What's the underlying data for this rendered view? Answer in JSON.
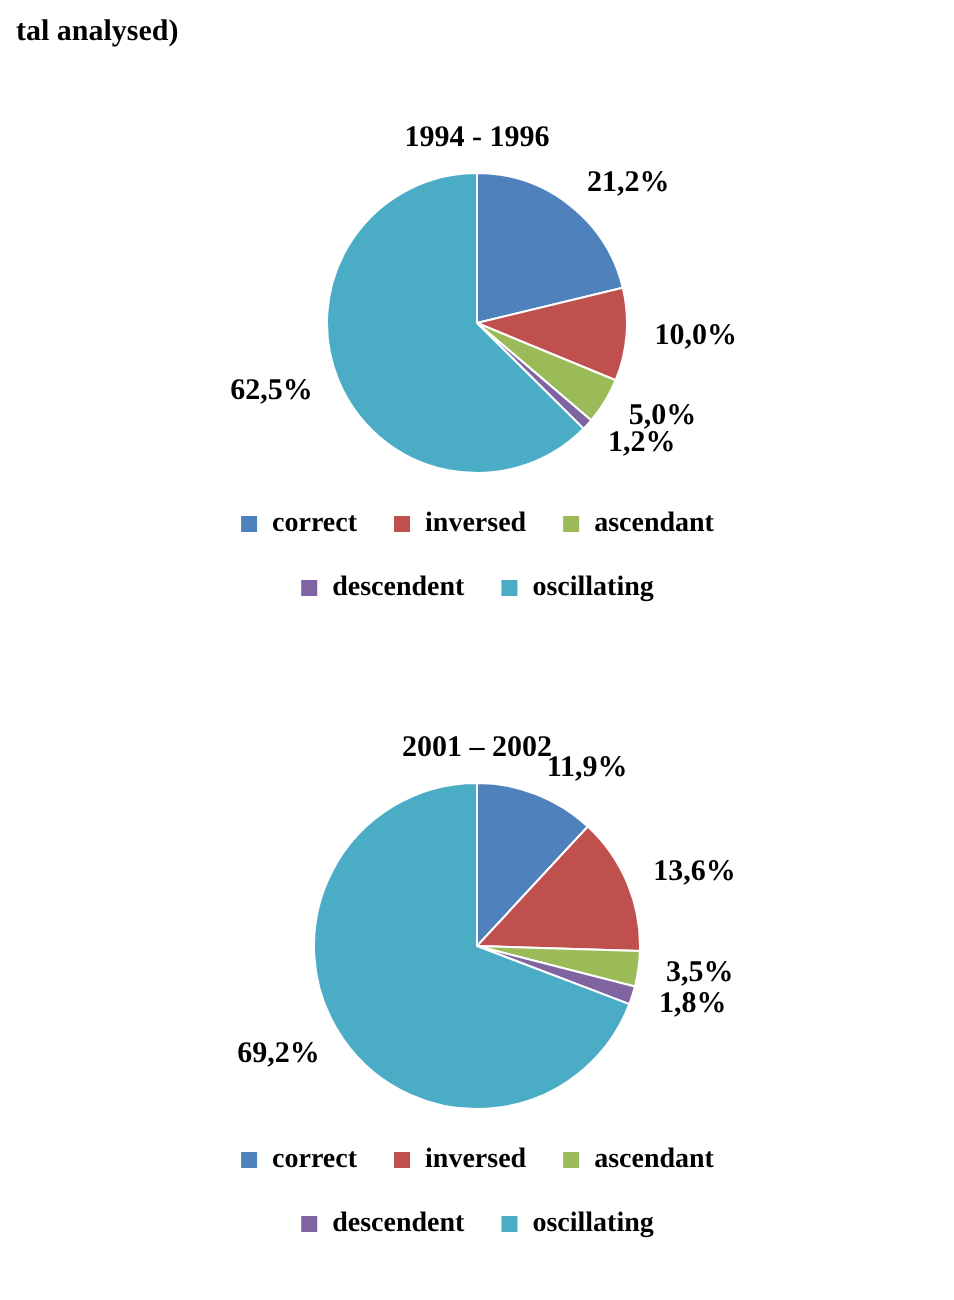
{
  "chart_data": [
    {
      "type": "pie",
      "title": "1994 - 1996",
      "annotations": [
        "tal analysed)"
      ],
      "categories": [
        "correct",
        "inversed",
        "ascendant",
        "descendent",
        "oscillating"
      ],
      "values": [
        21.2,
        10.0,
        5.0,
        1.2,
        62.5
      ],
      "colors": [
        "#4f81bd",
        "#c0504d",
        "#9bbb59",
        "#8064a2",
        "#4bacc6"
      ],
      "value_labels": [
        "21,2%",
        "10,0%",
        "5,0%",
        "1,2%",
        "62,5%"
      ],
      "legend": "bottom"
    },
    {
      "type": "pie",
      "title": "2001 – 2002",
      "categories": [
        "correct",
        "inversed",
        "ascendant",
        "descendent",
        "oscillating"
      ],
      "values": [
        11.9,
        13.6,
        3.5,
        1.8,
        69.2
      ],
      "colors": [
        "#4f81bd",
        "#c0504d",
        "#9bbb59",
        "#8064a2",
        "#4bacc6"
      ],
      "value_labels": [
        "11,9%",
        "13,6%",
        "3,5%",
        "1,8%",
        "69,2%"
      ],
      "legend": "bottom"
    }
  ]
}
